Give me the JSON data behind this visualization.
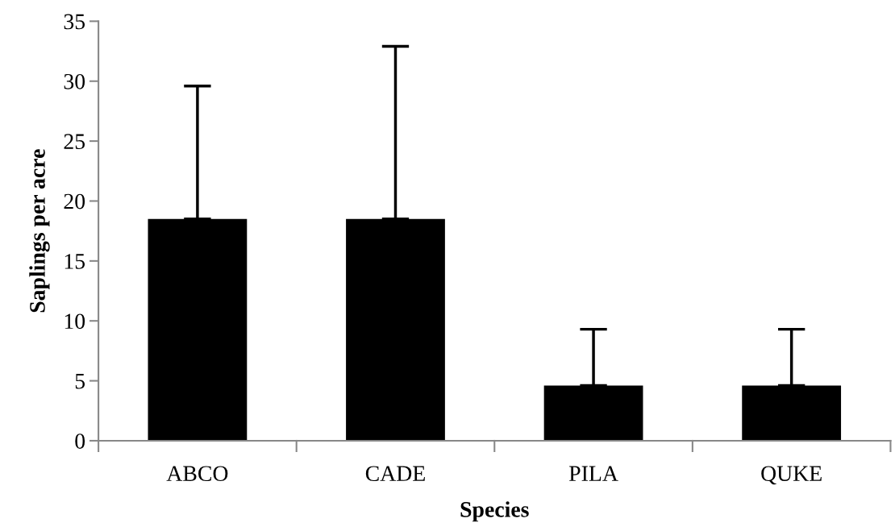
{
  "chart_data": {
    "type": "bar",
    "xlabel": "Species",
    "ylabel": "Saplings per acre",
    "categories": [
      "ABCO",
      "CADE",
      "PILA",
      "QUKE"
    ],
    "values": [
      18.5,
      18.5,
      4.6,
      4.6
    ],
    "errors": [
      [
        18.5,
        29.6
      ],
      [
        18.5,
        32.9
      ],
      [
        4.6,
        9.3
      ],
      [
        4.6,
        9.3
      ]
    ],
    "color": "#000000",
    "ylim": [
      0,
      35
    ],
    "yticks": [
      0,
      5,
      10,
      15,
      20,
      25,
      30,
      35
    ],
    "grid": false,
    "legend": false
  }
}
